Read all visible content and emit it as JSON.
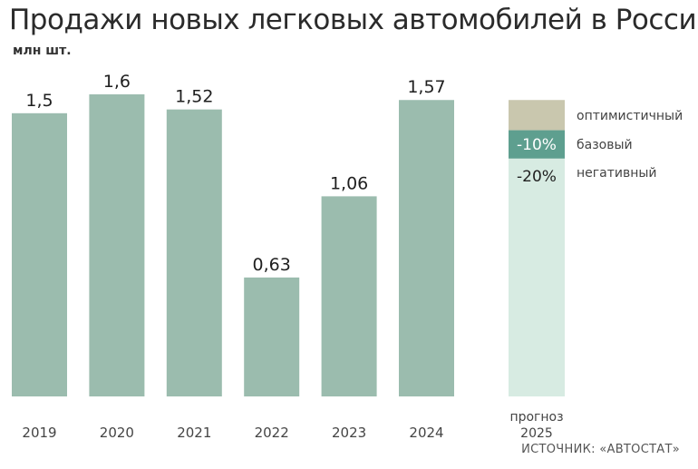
{
  "chart_data": {
    "type": "bar",
    "title": "Продажи новых легковых автомобилей в России",
    "unit": "млн шт.",
    "categories": [
      "2019",
      "2020",
      "2021",
      "2022",
      "2023",
      "2024"
    ],
    "values": [
      1.5,
      1.6,
      1.52,
      0.63,
      1.06,
      1.57
    ],
    "value_labels": [
      "1,5",
      "1,6",
      "1,52",
      "0,63",
      "1,06",
      "1,57"
    ],
    "ylim": [
      0,
      1.6
    ],
    "colors": {
      "bar": "#9bbcae",
      "optimistic": "#c9c7ae",
      "base": "#5e9f8f",
      "negative": "#d7ebe2"
    },
    "forecast": {
      "category_line1": "прогноз",
      "category_line2": "2025",
      "scenarios": [
        {
          "name": "оптимистичный",
          "label": "",
          "value": 1.57
        },
        {
          "name": "базовый",
          "label": "-10%",
          "value": 1.41
        },
        {
          "name": "негативный",
          "label": "-20%",
          "value": 1.26
        }
      ]
    },
    "source": "ИСТОЧНИК: «АВТОСТАТ»"
  }
}
